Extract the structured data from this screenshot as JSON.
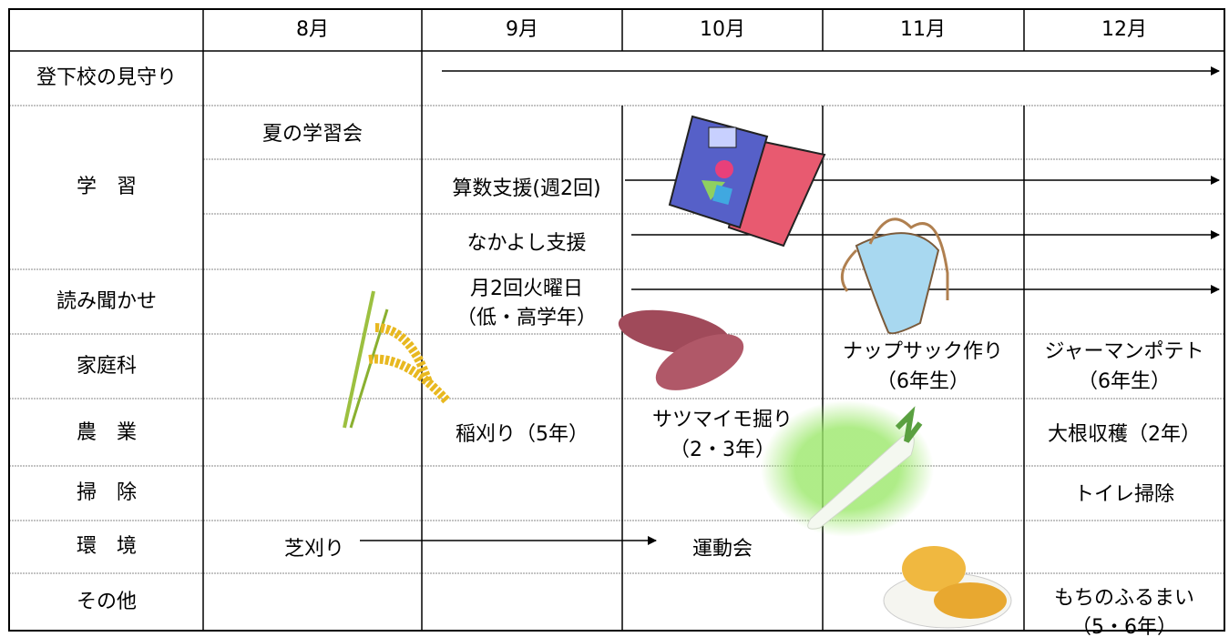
{
  "table": {
    "header": [
      "8月",
      "9月",
      "10月",
      "11月",
      "12月"
    ],
    "rows": [
      "登下校の見守り",
      "学　習",
      "読み聞かせ",
      "家庭科",
      "農　業",
      "掃　除",
      "環　境",
      "その他"
    ],
    "entries": [
      {
        "lines": [
          "夏の学習会"
        ]
      },
      {
        "lines": [
          "算数支援(週2回)"
        ]
      },
      {
        "lines": [
          "なかよし支援"
        ]
      },
      {
        "lines": [
          "月2回火曜日",
          "（低・高学年）"
        ]
      },
      {
        "lines": [
          "ナップサック作り",
          "（6年生）"
        ]
      },
      {
        "lines": [
          "ジャーマンポテト",
          "（6年生）"
        ]
      },
      {
        "lines": [
          "稲刈り（5年）"
        ]
      },
      {
        "lines": [
          "サツマイモ掘り",
          "（2・3年）"
        ]
      },
      {
        "lines": [
          "大根収穫（2年）"
        ]
      },
      {
        "lines": [
          "トイレ掃除"
        ]
      },
      {
        "lines": [
          "芝刈り"
        ]
      },
      {
        "lines": [
          "運動会"
        ]
      },
      {
        "lines": [
          "もちのふるまい",
          "（5・6年）"
        ]
      }
    ]
  }
}
